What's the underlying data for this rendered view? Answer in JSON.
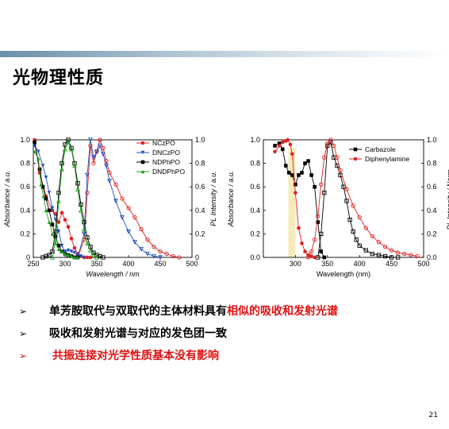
{
  "slide": {
    "title": "光物理性质",
    "page_number": "21",
    "accent_band": "#6a8fa8"
  },
  "bullets": [
    {
      "arrow": "➢",
      "parts": [
        {
          "text": "单芳胺取代与双取代的主体材料具有",
          "color": "#000000"
        },
        {
          "text": "相似的吸收和发射光谱",
          "color": "#e01010"
        }
      ]
    },
    {
      "arrow": "➢",
      "parts": [
        {
          "text": "吸收和发射光谱与对应的发色团一致",
          "color": "#000000"
        }
      ]
    },
    {
      "arrow": "➢",
      "parts": [
        {
          "text": "共振连接对光学性质基本没有影响",
          "color": "#e01010"
        }
      ]
    }
  ],
  "chart_data": [
    {
      "type": "line",
      "xlabel": "Wavelength / nm",
      "ylabel_left": "Absorbance / a.u.",
      "ylabel_right": "PL Intensity / a.u.",
      "xlim": [
        250,
        500
      ],
      "ylim": [
        0,
        1.0
      ],
      "x_ticks": [
        "250",
        "300",
        "350",
        "400",
        "450",
        "500"
      ],
      "y_ticks": [
        "0",
        "0.2",
        "0.4",
        "0.6",
        "0.8",
        "1.0"
      ],
      "legend_position": "top-right",
      "series": [
        {
          "name": "NCzPO",
          "color": "#e02020",
          "marker": "circle",
          "absorption": {
            "x": [
              252,
              260,
              270,
              280,
              285,
              290,
              295,
              300,
              305,
              310,
              315,
              320,
              325,
              330,
              335,
              340
            ],
            "y": [
              1.0,
              0.72,
              0.52,
              0.4,
              0.37,
              0.3,
              0.38,
              0.32,
              0.26,
              0.16,
              0.08,
              0.03,
              0.01,
              0.0,
              0.0,
              0.0
            ]
          },
          "emission": {
            "x": [
              320,
              330,
              335,
              340,
              345,
              350,
              355,
              360,
              365,
              370,
              380,
              390,
              400,
              410,
              420,
              430,
              440,
              450,
              460,
              470,
              480
            ],
            "y": [
              0.0,
              0.15,
              0.55,
              0.95,
              0.8,
              0.9,
              1.0,
              0.93,
              0.82,
              0.72,
              0.62,
              0.5,
              0.42,
              0.34,
              0.24,
              0.15,
              0.09,
              0.05,
              0.03,
              0.01,
              0.0
            ]
          }
        },
        {
          "name": "DNCzPO",
          "color": "#2050c0",
          "marker": "triangle-down",
          "absorption": {
            "x": [
              252,
              258,
              265,
              270,
              275,
              280,
              285,
              290,
              295,
              300,
              305,
              310,
              315,
              320,
              325,
              330
            ],
            "y": [
              0.95,
              0.9,
              0.78,
              0.68,
              0.55,
              0.42,
              0.32,
              0.22,
              0.1,
              0.05,
              0.06,
              0.05,
              0.04,
              0.02,
              0.01,
              0.0
            ]
          },
          "emission": {
            "x": [
              320,
              330,
              335,
              340,
              345,
              350,
              355,
              360,
              365,
              370,
              380,
              390,
              400,
              410,
              420,
              430,
              440,
              450
            ],
            "y": [
              0.0,
              0.2,
              0.7,
              1.0,
              0.85,
              0.9,
              0.95,
              0.88,
              0.78,
              0.65,
              0.48,
              0.34,
              0.22,
              0.13,
              0.07,
              0.03,
              0.01,
              0.0
            ]
          }
        },
        {
          "name": "NDPhPO",
          "color": "#000000",
          "marker": "square",
          "absorption": {
            "x": [
              252,
              260,
              265,
              270,
              275,
              280,
              285,
              290,
              295,
              300,
              305,
              310,
              315,
              320
            ],
            "y": [
              0.98,
              0.75,
              0.6,
              0.5,
              0.4,
              0.28,
              0.18,
              0.1,
              0.05,
              0.03,
              0.02,
              0.01,
              0.0,
              0.0
            ]
          },
          "emission": {
            "x": [
              265,
              270,
              275,
              280,
              285,
              290,
              295,
              300,
              305,
              310,
              315,
              320,
              325,
              330,
              335,
              340,
              345,
              350,
              355,
              360
            ],
            "y": [
              0.0,
              0.01,
              0.02,
              0.05,
              0.22,
              0.55,
              0.8,
              0.96,
              1.0,
              0.93,
              0.8,
              0.63,
              0.45,
              0.3,
              0.17,
              0.09,
              0.04,
              0.02,
              0.01,
              0.0
            ]
          }
        },
        {
          "name": "DNDPhPO",
          "color": "#20a020",
          "marker": "triangle-up",
          "absorption": {
            "x": [
              252,
              258,
              262,
              266,
              270,
              275,
              280,
              285,
              290,
              295,
              300,
              305,
              310,
              315,
              320
            ],
            "y": [
              0.9,
              0.84,
              0.62,
              0.52,
              0.4,
              0.3,
              0.2,
              0.12,
              0.07,
              0.05,
              0.03,
              0.02,
              0.01,
              0.0,
              0.0
            ]
          },
          "emission": {
            "x": [
              280,
              285,
              290,
              295,
              300,
              305,
              310,
              315,
              320,
              325,
              330,
              335,
              340,
              345,
              350
            ],
            "y": [
              0.0,
              0.15,
              0.48,
              0.75,
              0.92,
              0.98,
              0.92,
              0.78,
              0.58,
              0.4,
              0.24,
              0.12,
              0.06,
              0.02,
              0.0
            ]
          }
        }
      ]
    },
    {
      "type": "line",
      "xlabel": "Wavelength (nm)",
      "ylabel_left": "Absorbance / a.u.",
      "ylabel_right": "PL Intensity / Norm.",
      "xlim": [
        250,
        500
      ],
      "ylim": [
        0,
        1.0
      ],
      "x_ticks": [
        "300",
        "350",
        "400",
        "450",
        "500"
      ],
      "y_ticks": [
        "0.0",
        "0.2",
        "0.4",
        "0.6",
        "0.8",
        "1.0"
      ],
      "legend_position": "top-right",
      "series": [
        {
          "name": "Carbazole",
          "color": "#000000",
          "marker": "square",
          "absorption": {
            "x": [
              268,
              275,
              280,
              285,
              290,
              295,
              300,
              305,
              310,
              315,
              320,
              325,
              330,
              335,
              340,
              345
            ],
            "y": [
              0.95,
              0.97,
              0.92,
              0.78,
              0.72,
              0.7,
              0.62,
              0.7,
              0.72,
              0.8,
              0.82,
              0.7,
              0.6,
              0.3,
              0.05,
              0.0
            ]
          },
          "emission": {
            "x": [
              335,
              340,
              345,
              350,
              355,
              360,
              365,
              370,
              375,
              380,
              385,
              390,
              395,
              400,
              410,
              420,
              430,
              440,
              450,
              460
            ],
            "y": [
              0.0,
              0.2,
              0.55,
              0.95,
              0.98,
              0.85,
              0.78,
              0.7,
              0.6,
              0.48,
              0.32,
              0.22,
              0.15,
              0.1,
              0.06,
              0.03,
              0.02,
              0.01,
              0.0,
              0.0
            ]
          }
        },
        {
          "name": "Diphenylamine",
          "color": "#e02020",
          "marker": "circle",
          "absorption": {
            "x": [
              268,
              275,
              280,
              285,
              288,
              292,
              295,
              300,
              305,
              310,
              315,
              320,
              325,
              330
            ],
            "y": [
              0.9,
              0.95,
              0.98,
              0.99,
              1.0,
              0.96,
              0.88,
              0.55,
              0.25,
              0.12,
              0.05,
              0.02,
              0.01,
              0.0
            ]
          },
          "emission": {
            "x": [
              320,
              325,
              330,
              335,
              340,
              345,
              350,
              355,
              360,
              365,
              370,
              380,
              390,
              400,
              410,
              420,
              430,
              440,
              450,
              460,
              470,
              480,
              490
            ],
            "y": [
              0.0,
              0.05,
              0.15,
              0.35,
              0.62,
              0.85,
              0.97,
              1.0,
              0.95,
              0.85,
              0.74,
              0.58,
              0.44,
              0.34,
              0.25,
              0.18,
              0.13,
              0.09,
              0.06,
              0.04,
              0.03,
              0.02,
              0.01
            ]
          }
        }
      ]
    }
  ]
}
